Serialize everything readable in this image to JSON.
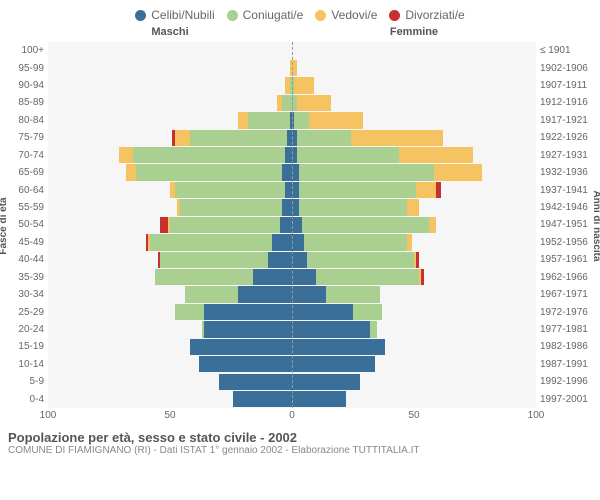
{
  "legend": [
    {
      "label": "Celibi/Nubili",
      "color": "#3a6f9a"
    },
    {
      "label": "Coniugati/e",
      "color": "#a9cf91"
    },
    {
      "label": "Vedovi/e",
      "color": "#f5c361"
    },
    {
      "label": "Divorziati/e",
      "color": "#c73030"
    }
  ],
  "headers": {
    "left": "Maschi",
    "right": "Femmine"
  },
  "axis_titles": {
    "left": "Fasce di età",
    "right": "Anni di nascita"
  },
  "xlim": 100,
  "xticks": [
    100,
    50,
    0,
    50,
    100
  ],
  "age_labels": [
    "100+",
    "95-99",
    "90-94",
    "85-89",
    "80-84",
    "75-79",
    "70-74",
    "65-69",
    "60-64",
    "55-59",
    "50-54",
    "45-49",
    "40-44",
    "35-39",
    "30-34",
    "25-29",
    "20-24",
    "15-19",
    "10-14",
    "5-9",
    "0-4"
  ],
  "birth_labels": [
    "≤ 1901",
    "1902-1906",
    "1907-1911",
    "1912-1916",
    "1917-1921",
    "1922-1926",
    "1927-1931",
    "1932-1936",
    "1937-1941",
    "1942-1946",
    "1947-1951",
    "1952-1956",
    "1957-1961",
    "1962-1966",
    "1967-1971",
    "1972-1976",
    "1977-1981",
    "1982-1986",
    "1987-1991",
    "1992-1996",
    "1997-2001"
  ],
  "rows": [
    {
      "m": [
        0,
        0,
        0,
        0
      ],
      "f": [
        0,
        0,
        0,
        0
      ]
    },
    {
      "m": [
        0,
        0,
        1,
        0
      ],
      "f": [
        0,
        0,
        2,
        0
      ]
    },
    {
      "m": [
        0,
        1,
        2,
        0
      ],
      "f": [
        0,
        1,
        8,
        0
      ]
    },
    {
      "m": [
        0,
        4,
        2,
        0
      ],
      "f": [
        0,
        2,
        14,
        0
      ]
    },
    {
      "m": [
        1,
        17,
        4,
        0
      ],
      "f": [
        1,
        6,
        22,
        0
      ]
    },
    {
      "m": [
        2,
        40,
        6,
        1
      ],
      "f": [
        2,
        22,
        38,
        0
      ]
    },
    {
      "m": [
        3,
        62,
        6,
        0
      ],
      "f": [
        2,
        42,
        30,
        0
      ]
    },
    {
      "m": [
        4,
        60,
        4,
        0
      ],
      "f": [
        3,
        55,
        20,
        0
      ]
    },
    {
      "m": [
        3,
        45,
        2,
        0
      ],
      "f": [
        3,
        48,
        8,
        2
      ]
    },
    {
      "m": [
        4,
        42,
        1,
        0
      ],
      "f": [
        3,
        44,
        5,
        0
      ]
    },
    {
      "m": [
        5,
        45,
        1,
        3
      ],
      "f": [
        4,
        52,
        3,
        0
      ]
    },
    {
      "m": [
        8,
        50,
        1,
        1
      ],
      "f": [
        5,
        42,
        2,
        0
      ]
    },
    {
      "m": [
        10,
        44,
        0,
        1
      ],
      "f": [
        6,
        44,
        1,
        1
      ]
    },
    {
      "m": [
        16,
        40,
        0,
        0
      ],
      "f": [
        10,
        42,
        1,
        1
      ]
    },
    {
      "m": [
        22,
        22,
        0,
        0
      ],
      "f": [
        14,
        22,
        0,
        0
      ]
    },
    {
      "m": [
        36,
        12,
        0,
        0
      ],
      "f": [
        25,
        12,
        0,
        0
      ]
    },
    {
      "m": [
        36,
        1,
        0,
        0
      ],
      "f": [
        32,
        3,
        0,
        0
      ]
    },
    {
      "m": [
        42,
        0,
        0,
        0
      ],
      "f": [
        38,
        0,
        0,
        0
      ]
    },
    {
      "m": [
        38,
        0,
        0,
        0
      ],
      "f": [
        34,
        0,
        0,
        0
      ]
    },
    {
      "m": [
        30,
        0,
        0,
        0
      ],
      "f": [
        28,
        0,
        0,
        0
      ]
    },
    {
      "m": [
        24,
        0,
        0,
        0
      ],
      "f": [
        22,
        0,
        0,
        0
      ]
    }
  ],
  "colors": {
    "background": "#f6f6f6",
    "axis_line": "#999999"
  },
  "footer": {
    "title": "Popolazione per età, sesso e stato civile - 2002",
    "subtitle": "COMUNE DI FIAMIGNANO (RI) - Dati ISTAT 1° gennaio 2002 - Elaborazione TUTTITALIA.IT"
  }
}
